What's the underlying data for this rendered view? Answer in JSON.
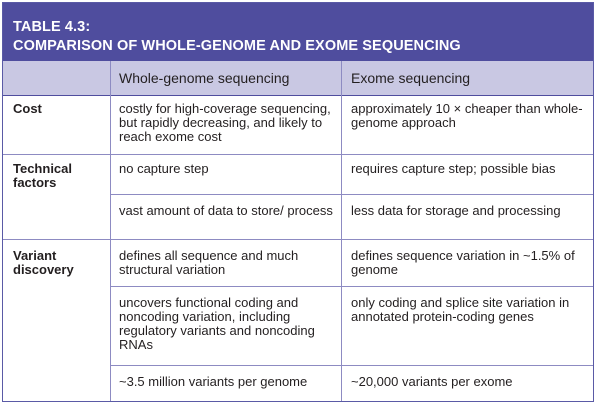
{
  "table": {
    "title_line1": "TABLE 4.3:",
    "title_line2": "COMPARISON OF WHOLE-GENOME AND EXOME SEQUENCING",
    "header": {
      "col1": "Whole-genome sequencing",
      "col2": "Exome sequencing"
    },
    "rows": [
      {
        "label": "Cost",
        "entries": [
          {
            "wgs": "costly for high-coverage sequencing, but rapidly decreasing, and likely to reach exome cost",
            "exome": "approximately 10 × cheaper than whole-genome approach"
          }
        ]
      },
      {
        "label": "Technical factors",
        "entries": [
          {
            "wgs": "no capture step",
            "exome": "requires capture step; possible bias"
          },
          {
            "wgs": "vast amount of data to store/ process",
            "exome": "less data for storage and processing"
          }
        ]
      },
      {
        "label": "Variant discovery",
        "entries": [
          {
            "wgs": "defines all sequence and much structural variation",
            "exome": "defines sequence variation in ~1.5% of genome"
          },
          {
            "wgs": "uncovers functional coding and noncoding variation, including regulatory variants and noncoding RNAs",
            "exome": "only coding and splice site variation in annotated protein-coding genes"
          },
          {
            "wgs": "~3.5 million variants per genome",
            "exome": "~20,000 variants per exome"
          }
        ]
      }
    ]
  },
  "colors": {
    "title_bg": "#4f4d9e",
    "header_bg": "#c9c8e3",
    "rule": "#8d8bc2"
  }
}
